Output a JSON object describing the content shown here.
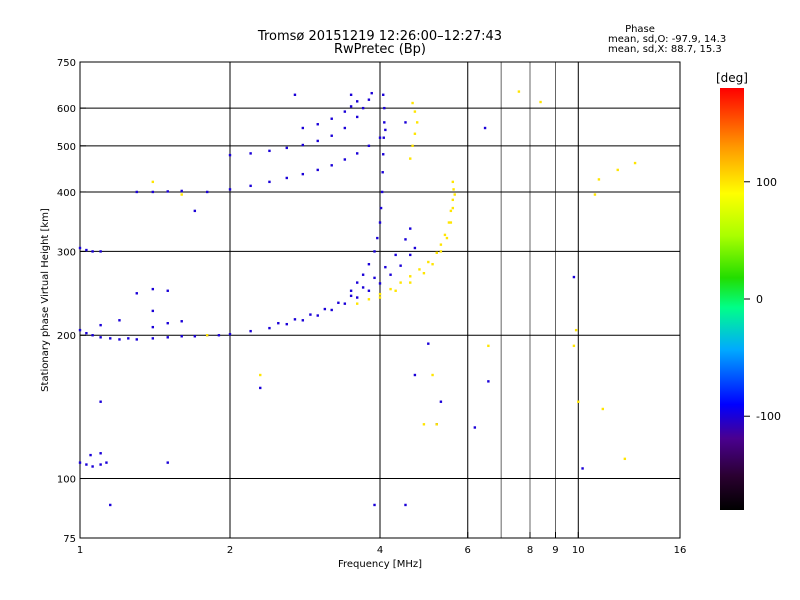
{
  "chart_data": {
    "type": "scatter",
    "title": "Tromsø 20151219 12:26:00–12:27:43",
    "subtitle": "RwPretec (Bp)",
    "xlabel": "Frequency [MHz]",
    "ylabel": "Stationary phase Virtual Height [km]",
    "x_scale": "log",
    "y_scale": "log",
    "xlim": [
      1,
      16
    ],
    "ylim": [
      75,
      750
    ],
    "x_ticks": [
      1,
      2,
      4,
      6,
      8,
      9,
      10,
      16
    ],
    "x_tick_labels": [
      "1",
      "2",
      "4",
      "6",
      "8",
      "9",
      "10",
      "16"
    ],
    "x_gridlines": [
      2,
      4,
      6,
      10
    ],
    "x_minor_lines": [
      7,
      8,
      9
    ],
    "y_ticks": [
      75,
      100,
      200,
      300,
      400,
      500,
      600,
      750
    ],
    "y_tick_labels": [
      "75",
      "100",
      "200",
      "300",
      "400",
      "500",
      "600",
      "750"
    ],
    "y_gridlines": [
      100,
      200,
      300,
      400,
      500,
      600
    ],
    "grid": true,
    "stats_block": {
      "heading": "Phase",
      "line_o": "mean, sd,O: -97.9, 14.3",
      "line_x": "mean, sd,X:  88.7, 15.3"
    },
    "colorbar": {
      "label": "[deg]",
      "range": [
        -180,
        180
      ],
      "ticks": [
        100,
        0,
        -100
      ],
      "tick_labels": [
        "100",
        "0",
        "-100"
      ]
    },
    "series": [
      {
        "name": "O",
        "phase": -100,
        "points": [
          [
            1.0,
            205
          ],
          [
            1.03,
            202
          ],
          [
            1.06,
            200
          ],
          [
            1.1,
            198
          ],
          [
            1.15,
            197
          ],
          [
            1.2,
            196
          ],
          [
            1.25,
            197
          ],
          [
            1.3,
            196
          ],
          [
            1.4,
            197
          ],
          [
            1.5,
            198
          ],
          [
            1.6,
            199
          ],
          [
            1.7,
            199
          ],
          [
            1.8,
            200
          ],
          [
            1.9,
            200
          ],
          [
            2.0,
            201
          ],
          [
            2.2,
            204
          ],
          [
            2.4,
            207
          ],
          [
            2.6,
            211
          ],
          [
            2.8,
            215
          ],
          [
            3.0,
            220
          ],
          [
            3.2,
            226
          ],
          [
            3.4,
            233
          ],
          [
            3.6,
            240
          ],
          [
            3.8,
            248
          ],
          [
            4.0,
            257
          ],
          [
            4.2,
            268
          ],
          [
            4.4,
            280
          ],
          [
            4.6,
            295
          ],
          [
            4.7,
            305
          ],
          [
            2.5,
            212
          ],
          [
            2.7,
            216
          ],
          [
            2.9,
            221
          ],
          [
            3.1,
            227
          ],
          [
            3.3,
            234
          ],
          [
            3.5,
            242
          ],
          [
            3.7,
            252
          ],
          [
            3.9,
            264
          ],
          [
            4.1,
            278
          ],
          [
            4.3,
            295
          ],
          [
            4.5,
            318
          ],
          [
            4.6,
            335
          ],
          [
            3.5,
            248
          ],
          [
            3.6,
            258
          ],
          [
            3.7,
            268
          ],
          [
            3.8,
            282
          ],
          [
            3.9,
            300
          ],
          [
            3.95,
            320
          ],
          [
            4.0,
            345
          ],
          [
            4.02,
            370
          ],
          [
            4.04,
            400
          ],
          [
            4.05,
            440
          ],
          [
            4.06,
            480
          ],
          [
            4.07,
            520
          ],
          [
            4.08,
            560
          ],
          [
            4.08,
            600
          ],
          [
            4.06,
            640
          ],
          [
            1.8,
            400
          ],
          [
            2.0,
            405
          ],
          [
            2.2,
            412
          ],
          [
            2.4,
            420
          ],
          [
            2.6,
            428
          ],
          [
            2.8,
            436
          ],
          [
            3.0,
            445
          ],
          [
            3.2,
            455
          ],
          [
            3.4,
            468
          ],
          [
            3.6,
            482
          ],
          [
            3.8,
            500
          ],
          [
            4.0,
            520
          ],
          [
            4.1,
            540
          ],
          [
            2.0,
            478
          ],
          [
            2.2,
            482
          ],
          [
            2.4,
            488
          ],
          [
            2.6,
            495
          ],
          [
            2.8,
            502
          ],
          [
            3.0,
            512
          ],
          [
            3.2,
            525
          ],
          [
            3.4,
            545
          ],
          [
            3.6,
            575
          ],
          [
            3.7,
            600
          ],
          [
            3.8,
            625
          ],
          [
            3.85,
            645
          ],
          [
            2.8,
            545
          ],
          [
            3.0,
            555
          ],
          [
            3.2,
            570
          ],
          [
            3.4,
            590
          ],
          [
            3.5,
            605
          ],
          [
            3.6,
            620
          ],
          [
            1.3,
            400
          ],
          [
            1.4,
            400
          ],
          [
            1.5,
            401
          ],
          [
            1.6,
            402
          ],
          [
            1.0,
            305
          ],
          [
            1.03,
            302
          ],
          [
            1.06,
            300
          ],
          [
            1.1,
            300
          ],
          [
            1.0,
            108
          ],
          [
            1.03,
            107
          ],
          [
            1.06,
            106
          ],
          [
            1.1,
            107
          ],
          [
            1.13,
            108
          ],
          [
            1.05,
            112
          ],
          [
            1.1,
            113
          ],
          [
            1.4,
            208
          ],
          [
            1.5,
            212
          ],
          [
            1.6,
            214
          ],
          [
            1.3,
            245
          ],
          [
            1.4,
            250
          ],
          [
            1.5,
            248
          ],
          [
            1.4,
            225
          ],
          [
            1.2,
            215
          ],
          [
            1.1,
            210
          ],
          [
            1.7,
            365
          ],
          [
            2.3,
            155
          ],
          [
            2.7,
            640
          ],
          [
            3.5,
            640
          ],
          [
            1.1,
            145
          ],
          [
            1.5,
            108
          ],
          [
            3.9,
            88
          ],
          [
            4.5,
            88
          ],
          [
            10.2,
            105
          ],
          [
            5.0,
            192
          ],
          [
            4.7,
            165
          ],
          [
            5.2,
            130
          ],
          [
            5.3,
            145
          ],
          [
            6.2,
            128
          ],
          [
            6.6,
            160
          ],
          [
            1.15,
            88
          ],
          [
            9.8,
            265
          ],
          [
            4.5,
            560
          ],
          [
            6.5,
            545
          ]
        ]
      },
      {
        "name": "X",
        "phase": 100,
        "points": [
          [
            3.6,
            233
          ],
          [
            3.8,
            238
          ],
          [
            4.0,
            244
          ],
          [
            4.2,
            250
          ],
          [
            4.4,
            258
          ],
          [
            4.6,
            266
          ],
          [
            4.8,
            275
          ],
          [
            5.0,
            285
          ],
          [
            5.2,
            298
          ],
          [
            5.3,
            310
          ],
          [
            5.4,
            325
          ],
          [
            5.5,
            345
          ],
          [
            5.55,
            365
          ],
          [
            5.6,
            385
          ],
          [
            5.62,
            405
          ],
          [
            5.6,
            420
          ],
          [
            4.0,
            240
          ],
          [
            4.3,
            248
          ],
          [
            4.6,
            258
          ],
          [
            4.9,
            270
          ],
          [
            5.1,
            282
          ],
          [
            5.3,
            300
          ],
          [
            5.45,
            320
          ],
          [
            5.55,
            345
          ],
          [
            5.6,
            370
          ],
          [
            5.65,
            395
          ],
          [
            4.6,
            470
          ],
          [
            4.65,
            500
          ],
          [
            4.7,
            530
          ],
          [
            4.75,
            560
          ],
          [
            4.7,
            590
          ],
          [
            4.65,
            615
          ],
          [
            5.2,
            130
          ],
          [
            5.1,
            165
          ],
          [
            4.9,
            130
          ],
          [
            6.6,
            190
          ],
          [
            7.6,
            650
          ],
          [
            8.4,
            618
          ],
          [
            10.0,
            145
          ],
          [
            9.8,
            190
          ],
          [
            9.9,
            205
          ],
          [
            11.2,
            140
          ],
          [
            12.4,
            110
          ],
          [
            12.0,
            445
          ],
          [
            13.0,
            460
          ],
          [
            10.8,
            395
          ],
          [
            11.0,
            425
          ],
          [
            1.8,
            200
          ],
          [
            2.3,
            165
          ],
          [
            1.4,
            420
          ],
          [
            1.6,
            395
          ]
        ]
      }
    ]
  }
}
